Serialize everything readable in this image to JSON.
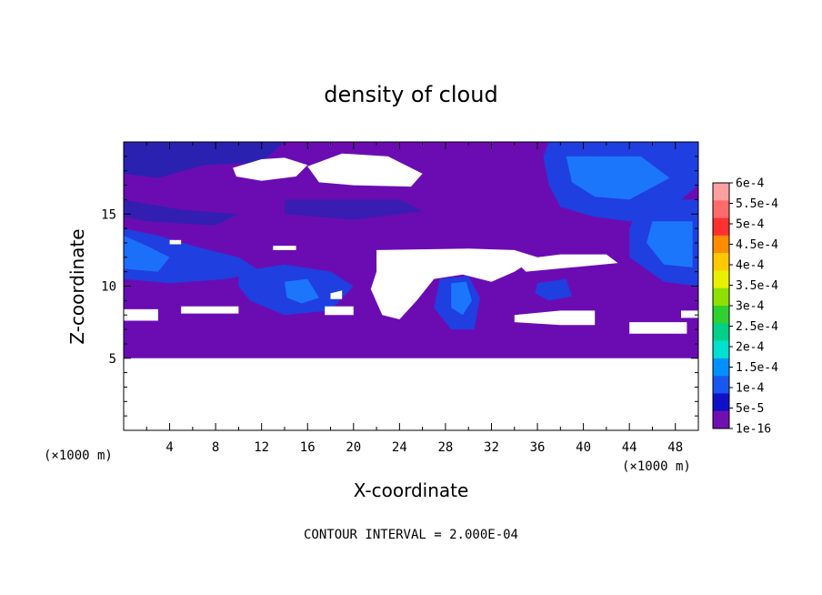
{
  "chart_data": {
    "type": "heatmap",
    "title": "density of cloud",
    "xlabel": "X-coordinate",
    "ylabel": "Z-coordinate",
    "x_unit": "(×1000 m)",
    "z_unit": "(×1000 m)",
    "xlim": [
      0,
      50
    ],
    "ylim": [
      0,
      20
    ],
    "xticks": [
      4,
      8,
      12,
      16,
      20,
      24,
      28,
      32,
      36,
      40,
      44,
      48
    ],
    "yticks": [
      5,
      10,
      15
    ],
    "colorbar": {
      "labels": [
        "6e-4",
        "5.5e-4",
        "5e-4",
        "4.5e-4",
        "4e-4",
        "3.5e-4",
        "3e-4",
        "2.5e-4",
        "2e-4",
        "1.5e-4",
        "1e-4",
        "5e-5",
        "1e-16"
      ],
      "colors": [
        "#ffa0a0",
        "#ff6a6a",
        "#ff3030",
        "#ff8c00",
        "#ffc800",
        "#e8f000",
        "#8ee000",
        "#30d030",
        "#00d088",
        "#00e0d0",
        "#0090ff",
        "#1858f0",
        "#1010c8",
        "#7010b0"
      ]
    },
    "regions": {
      "background_level": "1e-16",
      "background_color": "#6b0cb3",
      "empty_below_z": 5,
      "empty_color": "#ffffff",
      "low_density_color": "#7a18c0",
      "mid_density_color": "#1f3fe0",
      "high_density_color": "#1c7cff",
      "deep_color": "#2424b0"
    },
    "footer": "CONTOUR INTERVAL = 2.000E-04"
  }
}
